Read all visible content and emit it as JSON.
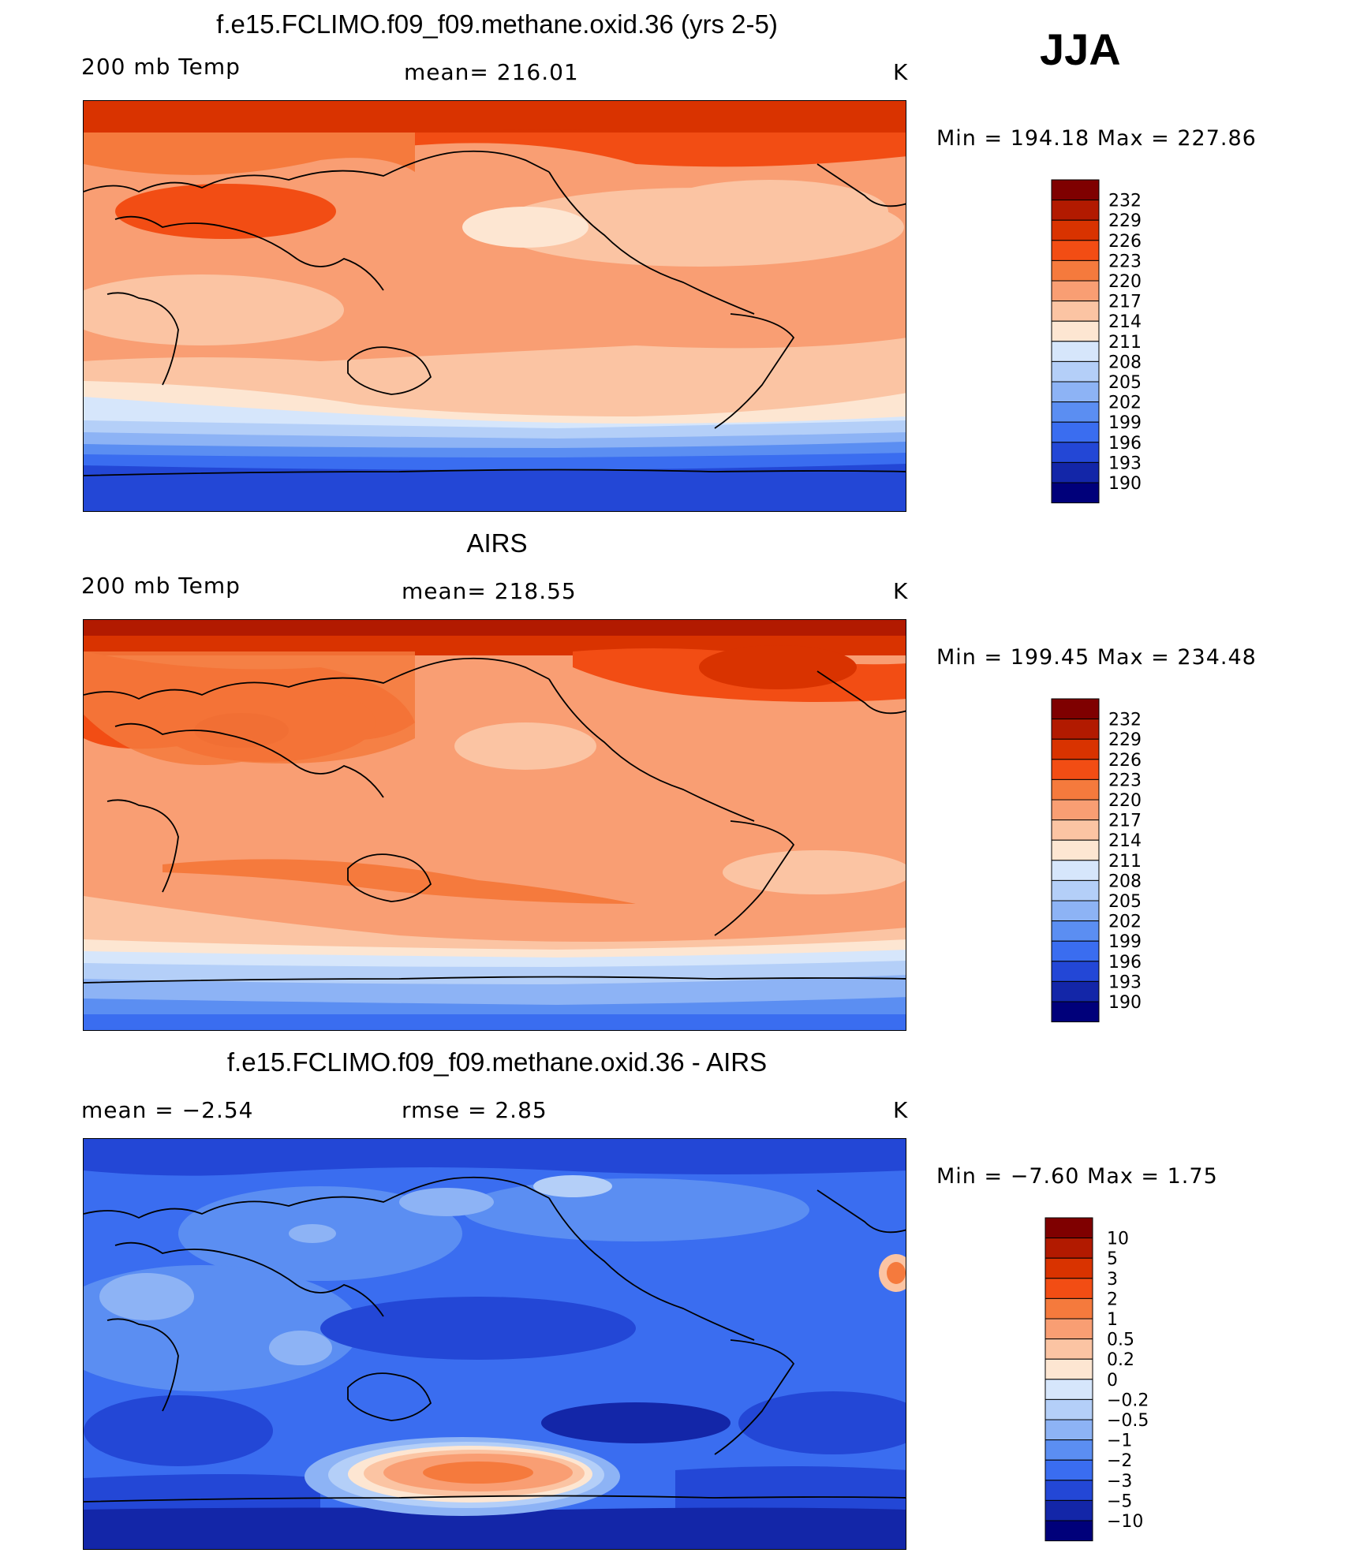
{
  "season": "JJA",
  "panels": [
    {
      "title": "f.e15.FCLIMO.f09_f09.methane.oxid.36 (yrs 2-5)",
      "left_label": "200 mb Temp",
      "center_label": "mean=  216.01",
      "unit": "K",
      "minmax": "Min  =  194.18  Max  =  227.86"
    },
    {
      "title": "AIRS",
      "left_label": "200 mb Temp",
      "center_label": "mean=  218.55",
      "unit": "K",
      "minmax": "Min  =  199.45  Max  =  234.48"
    },
    {
      "title": "f.e15.FCLIMO.f09_f09.methane.oxid.36 - AIRS",
      "left_label": "mean  =     −2.54",
      "center_label": "rmse  =      2.85",
      "unit": "K",
      "minmax": "Min  =    −7.60  Max  =      1.75"
    }
  ],
  "colorbars": {
    "temperature": {
      "labels": [
        "232",
        "229",
        "226",
        "223",
        "220",
        "217",
        "214",
        "211",
        "208",
        "205",
        "202",
        "199",
        "196",
        "193",
        "190"
      ],
      "colors": [
        "#7f0000",
        "#b21a00",
        "#d93300",
        "#f24d14",
        "#f57a3d",
        "#f99e73",
        "#fbc4a3",
        "#fde6d2",
        "#d6e6fb",
        "#b4cff8",
        "#8db3f5",
        "#5b8ef2",
        "#3a6df0",
        "#2347d6",
        "#1326a8",
        "#00007a"
      ]
    },
    "difference": {
      "labels": [
        "10",
        "5",
        "3",
        "2",
        "1",
        "0.5",
        "0.2",
        "0",
        "−0.2",
        "−0.5",
        "−1",
        "−2",
        "−3",
        "−5",
        "−10"
      ],
      "colors": [
        "#7f0000",
        "#b21a00",
        "#d93300",
        "#f24d14",
        "#f57a3d",
        "#f99e73",
        "#fbc4a3",
        "#fde6d2",
        "#d6e6fb",
        "#b4cff8",
        "#8db3f5",
        "#5b8ef2",
        "#3a6df0",
        "#2347d6",
        "#1326a8",
        "#00007a"
      ]
    }
  }
}
